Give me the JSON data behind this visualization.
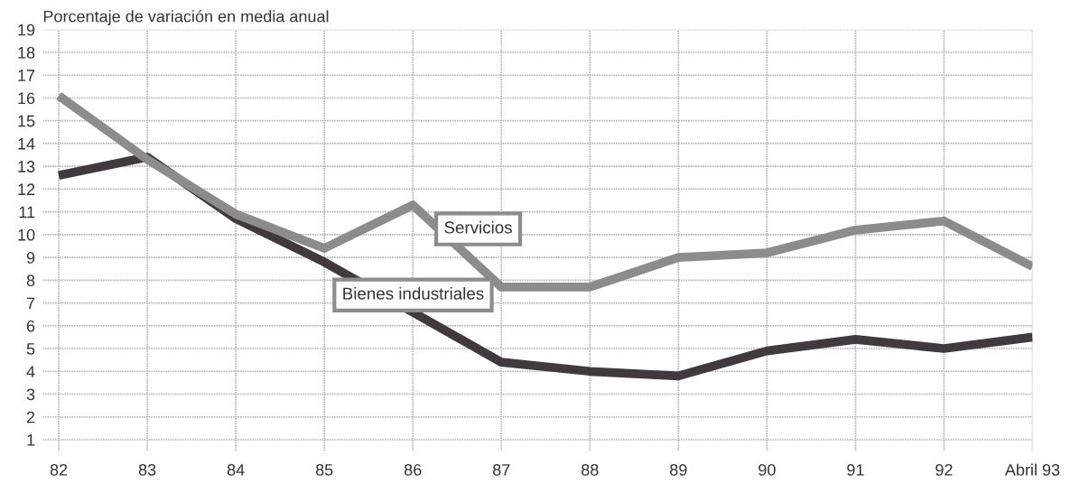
{
  "chart_data": {
    "type": "line",
    "ylabel": "Porcentaje de variación en media anual",
    "categories": [
      "82",
      "83",
      "84",
      "85",
      "86",
      "87",
      "88",
      "89",
      "90",
      "91",
      "92",
      "Abril 93"
    ],
    "series": [
      {
        "name": "Servicios",
        "color": "#8c8c8c",
        "values": [
          16.1,
          13.3,
          10.9,
          9.4,
          11.3,
          7.7,
          7.7,
          9.0,
          9.2,
          10.2,
          10.6,
          8.6
        ]
      },
      {
        "name": "Bienes industriales",
        "color": "#403a3f",
        "values": [
          12.6,
          13.4,
          10.7,
          8.8,
          6.6,
          4.4,
          4.0,
          3.8,
          4.9,
          5.4,
          5.0,
          5.5
        ]
      }
    ],
    "ylim": [
      0.5,
      19
    ],
    "yticks": [
      1,
      2,
      3,
      4,
      5,
      6,
      7,
      8,
      9,
      10,
      11,
      12,
      13,
      14,
      15,
      16,
      17,
      18,
      19
    ],
    "grid": true,
    "legend": false,
    "marker": "none",
    "line_style": "solid"
  }
}
